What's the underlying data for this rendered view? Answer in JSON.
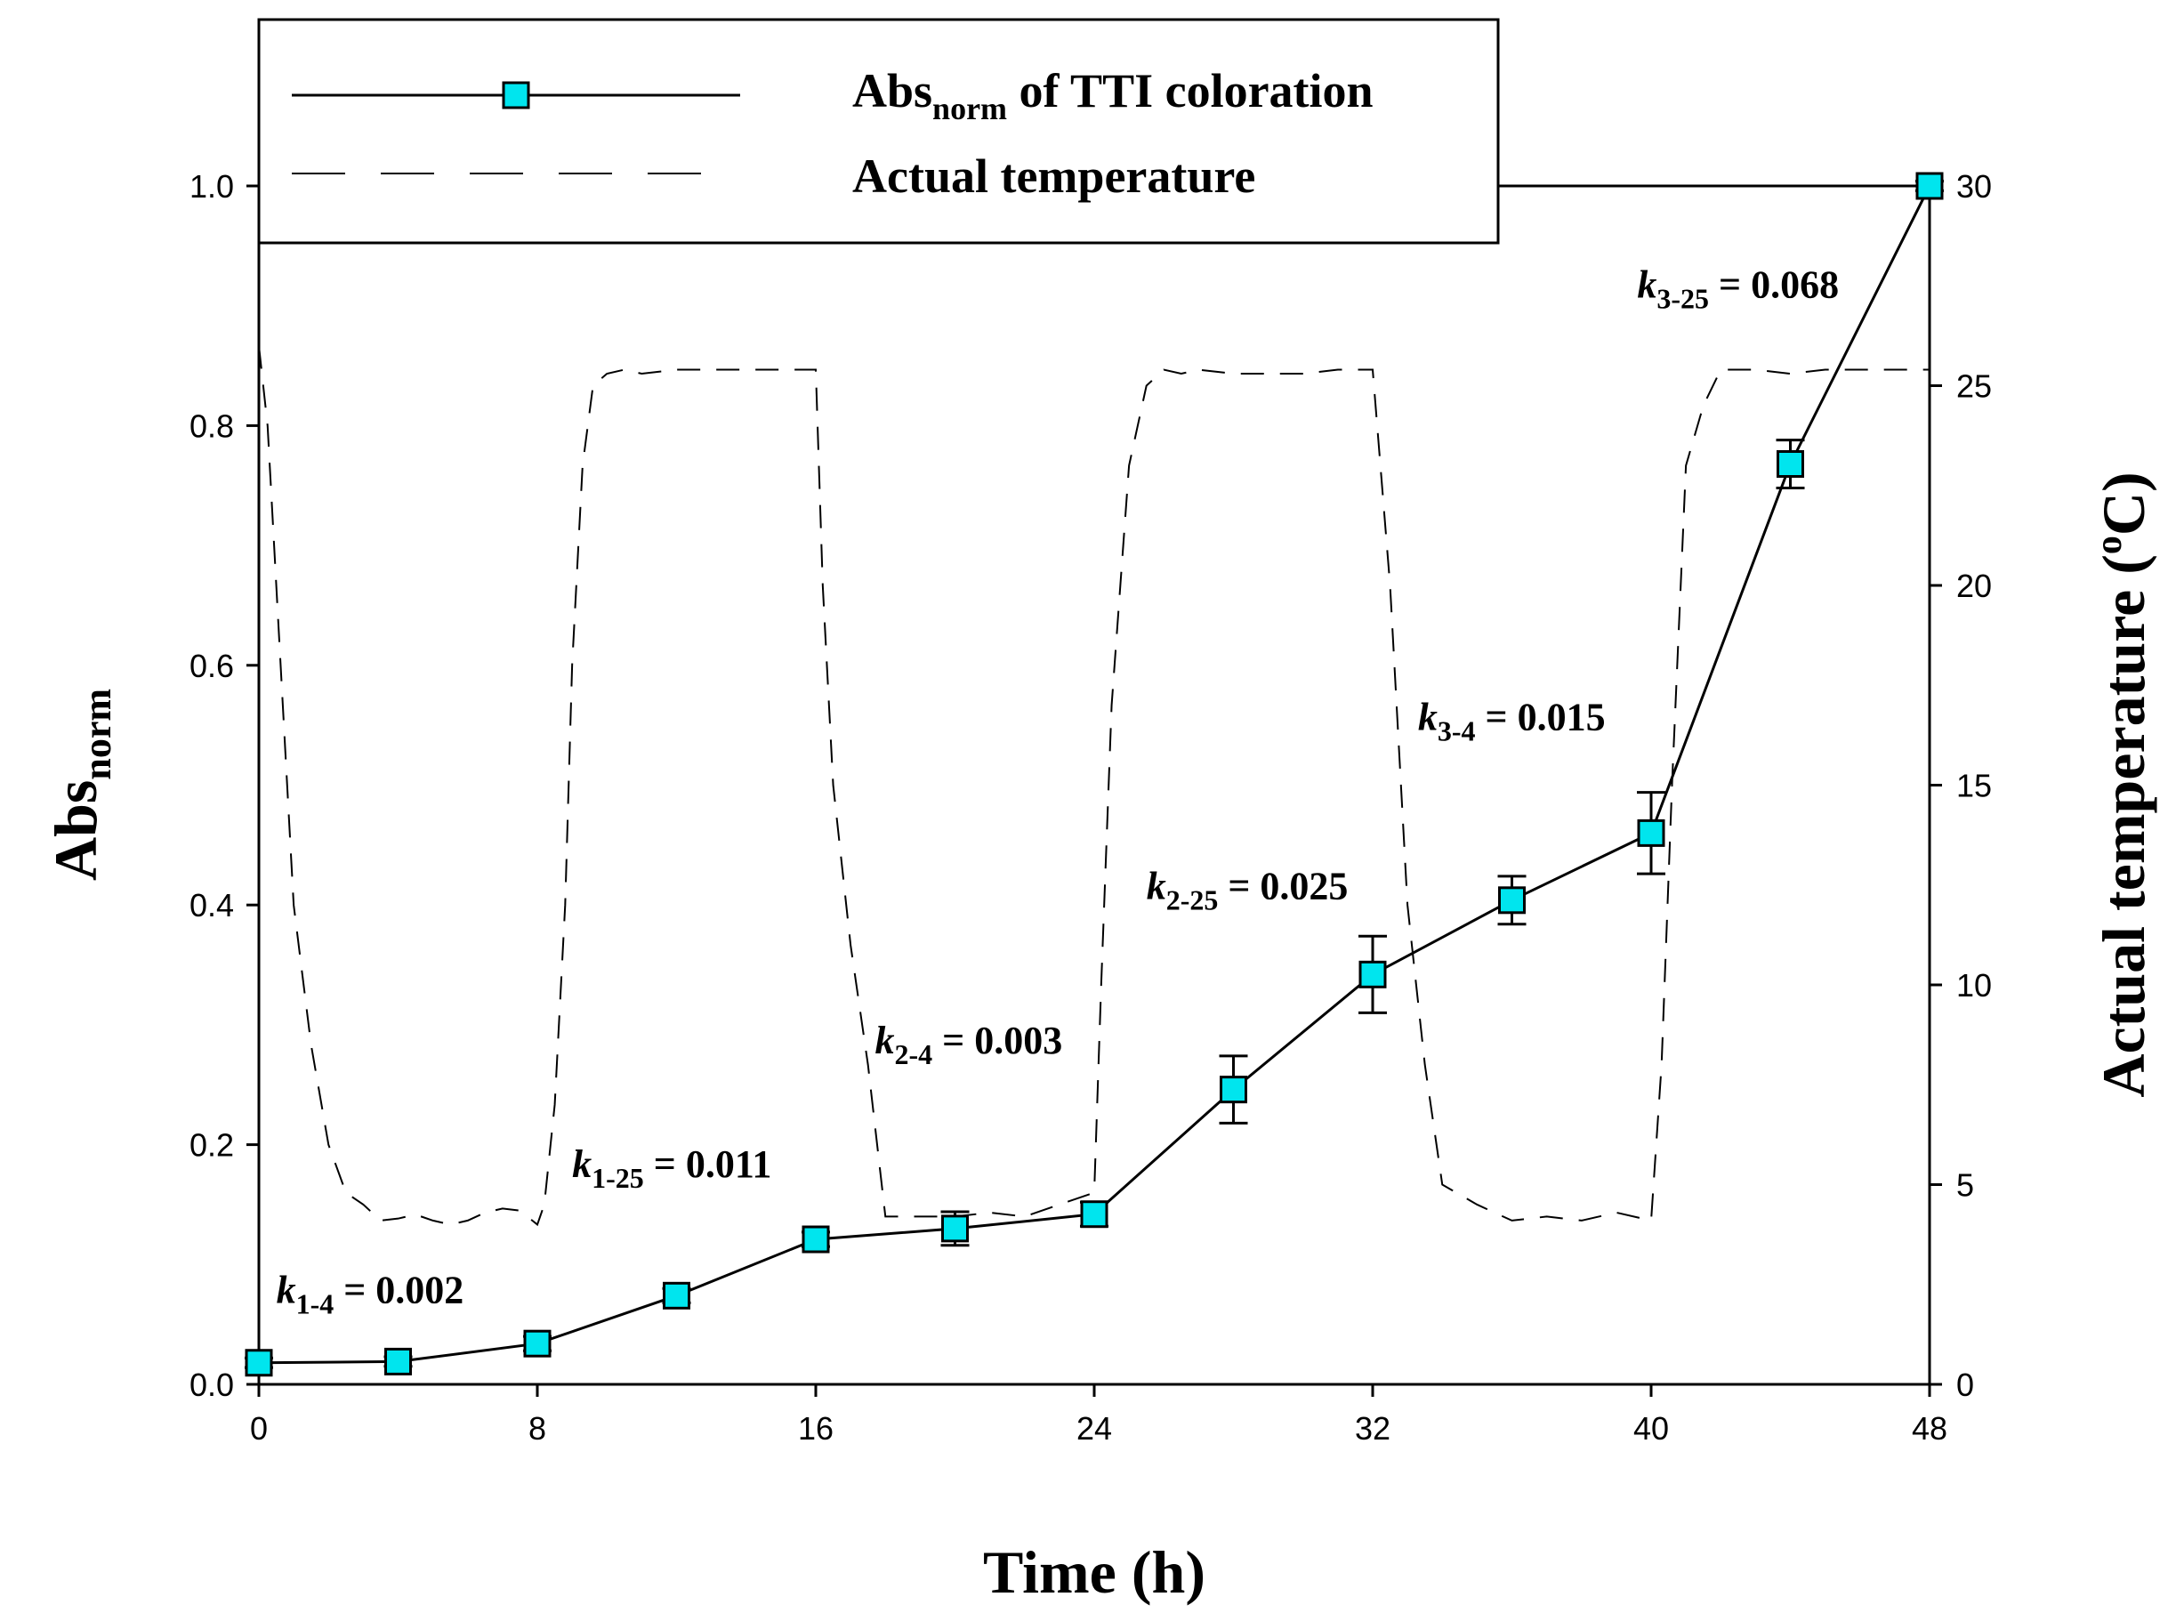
{
  "chart_data": {
    "type": "line",
    "xlabel": "Time (h)",
    "ylabel": {
      "main": "Abs",
      "sub": "norm"
    },
    "y2label": {
      "pre": "Actual temperature (",
      "sup": "o",
      "post": "C)"
    },
    "xlim": [
      0,
      48
    ],
    "ylim": [
      0,
      1.0
    ],
    "y2lim": [
      0,
      30
    ],
    "x_ticks": [
      "0",
      "8",
      "16",
      "24",
      "32",
      "40",
      "48"
    ],
    "y_ticks": [
      "0.0",
      "0.2",
      "0.4",
      "0.6",
      "0.8",
      "1.0"
    ],
    "y2_ticks": [
      "0",
      "5",
      "10",
      "15",
      "20",
      "25",
      "30"
    ],
    "series": [
      {
        "name": "Abs_norm of TTI coloration",
        "axis": "left",
        "style": "solid-line-square-markers",
        "marker_color": "#00e5ee",
        "x": [
          0,
          4,
          8,
          12,
          16,
          20,
          24,
          28,
          32,
          36,
          40,
          44,
          48
        ],
        "y": [
          0.018,
          0.019,
          0.034,
          0.074,
          0.121,
          0.13,
          0.142,
          0.246,
          0.342,
          0.404,
          0.46,
          0.768,
          1.0
        ],
        "error": [
          0.004,
          0.004,
          0.006,
          0.006,
          0.006,
          0.014,
          0.01,
          0.028,
          0.032,
          0.02,
          0.034,
          0.02,
          0.004
        ]
      },
      {
        "name": "Actual temperature",
        "axis": "right",
        "style": "dashed-line",
        "x": [
          0,
          0.25,
          0.5,
          1,
          1.5,
          2,
          2.5,
          3,
          3.5,
          4,
          4.5,
          5,
          5.5,
          6,
          6.5,
          7,
          7.5,
          8,
          8.2,
          8.5,
          8.8,
          9,
          9.3,
          9.6,
          10,
          10.5,
          11,
          12,
          13,
          14,
          15,
          16,
          16.2,
          16.5,
          17,
          17.5,
          18,
          19,
          20,
          21,
          22,
          23,
          24,
          24.2,
          24.5,
          25,
          25.5,
          26,
          26.5,
          27,
          28,
          29,
          30,
          31,
          32,
          32.5,
          33,
          33.5,
          34,
          35,
          36,
          37,
          38,
          39,
          40,
          40.3,
          40.6,
          41,
          41.5,
          42,
          43,
          44,
          45,
          46,
          47,
          48
        ],
        "y": [
          26,
          24,
          20,
          12,
          8.5,
          6,
          4.8,
          4.5,
          4.1,
          4.15,
          4.25,
          4.1,
          4.0,
          4.1,
          4.3,
          4.4,
          4.35,
          4.0,
          4.5,
          7,
          12,
          18,
          23,
          25,
          25.3,
          25.4,
          25.3,
          25.4,
          25.4,
          25.4,
          25.4,
          25.4,
          20,
          15,
          11,
          8,
          4.2,
          4.2,
          4.2,
          4.3,
          4.2,
          4.5,
          4.8,
          10,
          17,
          23,
          25,
          25.4,
          25.3,
          25.4,
          25.3,
          25.3,
          25.3,
          25.4,
          25.4,
          20,
          12,
          8,
          5,
          4.5,
          4.1,
          4.2,
          4.1,
          4.3,
          4.1,
          8,
          15,
          23,
          24.5,
          25.4,
          25.4,
          25.3,
          25.4,
          25.4,
          25.4,
          25.4
        ]
      }
    ],
    "legend": {
      "placement": "top",
      "entries": [
        {
          "main": "Abs",
          "sub": "norm",
          "rest": " of TTI coloration"
        },
        {
          "main": "Actual temperature",
          "sub": "",
          "rest": ""
        }
      ]
    },
    "annotations": [
      {
        "k": "k",
        "sub": "1-4",
        "rest": " = 0.002",
        "x": 0.5,
        "y": 0.068
      },
      {
        "k": "k",
        "sub": "1-25",
        "rest": " = 0.011",
        "x": 9.0,
        "y": 0.173
      },
      {
        "k": "k",
        "sub": "2-4",
        "rest": " = 0.003",
        "x": 17.7,
        "y": 0.276
      },
      {
        "k": "k",
        "sub": "2-25",
        "rest": " = 0.025",
        "x": 25.5,
        "y": 0.405
      },
      {
        "k": "k",
        "sub": "3-4",
        "rest": " = 0.015",
        "x": 33.3,
        "y": 0.546
      },
      {
        "k": "k",
        "sub": "3-25",
        "rest": " = 0.068",
        "x": 39.6,
        "y": 0.907
      }
    ]
  }
}
